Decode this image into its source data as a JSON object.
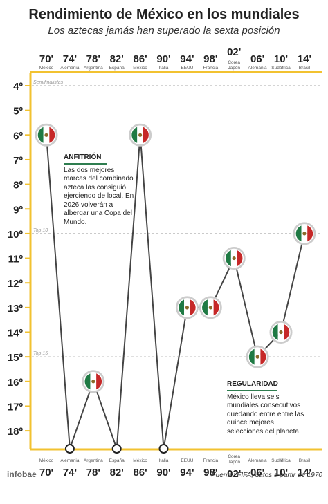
{
  "header": {
    "title": "Rendimiento de México en los mundiales",
    "subtitle": "Los aztecas jamás han superado la sexta posición"
  },
  "chart_data": {
    "type": "line",
    "x": [
      "70'",
      "74'",
      "78'",
      "82'",
      "86'",
      "90'",
      "94'",
      "98'",
      "02'",
      "06'",
      "10'",
      "14'"
    ],
    "hosts": [
      "México",
      "Alemania",
      "Argentina",
      "España",
      "México",
      "Italia",
      "EEUU",
      "Francia",
      "Corea Japón",
      "Alemania",
      "Sudáfrica",
      "Brasil"
    ],
    "series": [
      {
        "values": [
          6,
          null,
          16,
          null,
          6,
          null,
          13,
          13,
          11,
          15,
          14,
          10
        ]
      }
    ],
    "absent": [
      false,
      true,
      false,
      true,
      false,
      true,
      false,
      false,
      false,
      false,
      false,
      false
    ],
    "y_ticks": [
      "4º",
      "5º",
      "6º",
      "7º",
      "8º",
      "9º",
      "10º",
      "11º",
      "12º",
      "13º",
      "14º",
      "15º",
      "16º",
      "17º",
      "18º"
    ],
    "ylim": [
      4,
      18
    ],
    "inverted_y": true,
    "reference_lines": [
      {
        "y": 4,
        "label": "Semifinalistas"
      },
      {
        "y": 10,
        "label": "Top 10"
      },
      {
        "y": 15,
        "label": "Top 15"
      }
    ]
  },
  "annotations": {
    "host": {
      "title": "ANFITRIÓN",
      "text": "Las dos mejores marcas del combinado azteca las consiguió ejerciendo de local. En 2026 volverán a albergar una Copa del Mundo."
    },
    "regularity": {
      "title": "REGULARIDAD",
      "text": "México lleva seis mundiales consecutivos quedando entre entre las quince mejores selecciones del planeta."
    }
  },
  "footer": {
    "brand": "infobae",
    "source": "Fuente: FIFA, datos a partir de 1970"
  },
  "colors": {
    "accent": "#f2c230",
    "line": "#444444",
    "flag_green": "#1f7a44",
    "flag_red": "#c62828"
  }
}
